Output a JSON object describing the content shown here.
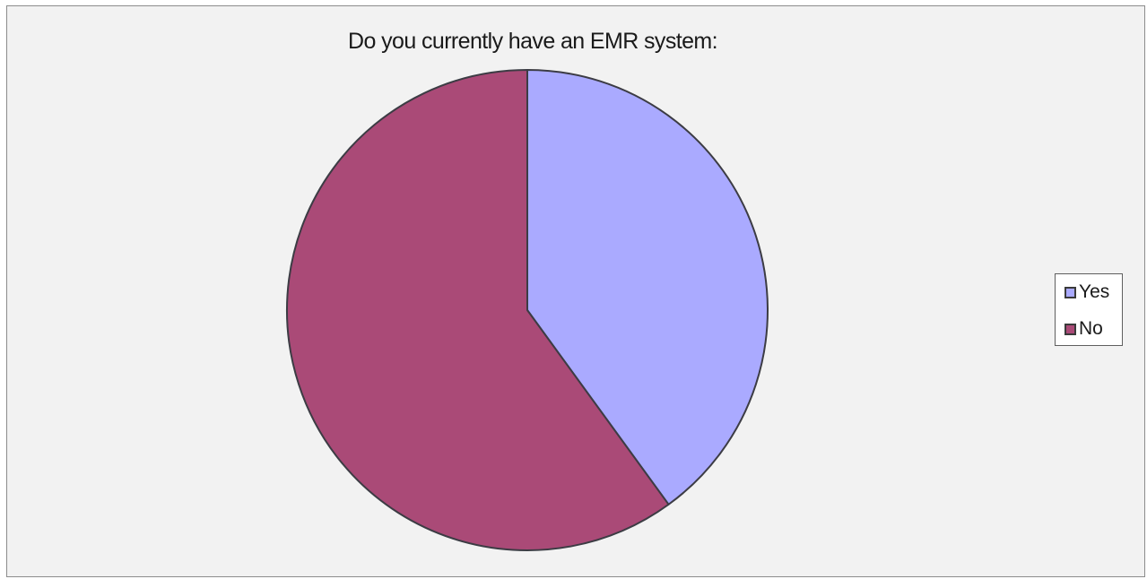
{
  "chart_data": {
    "type": "pie",
    "title": "Do you currently have an EMR system:",
    "categories": [
      "Yes",
      "No"
    ],
    "values": [
      40,
      60
    ],
    "colors": [
      "#aaaaff",
      "#aa4a77"
    ],
    "legend": {
      "placement": "right",
      "entries": [
        "Yes",
        "No"
      ]
    }
  }
}
